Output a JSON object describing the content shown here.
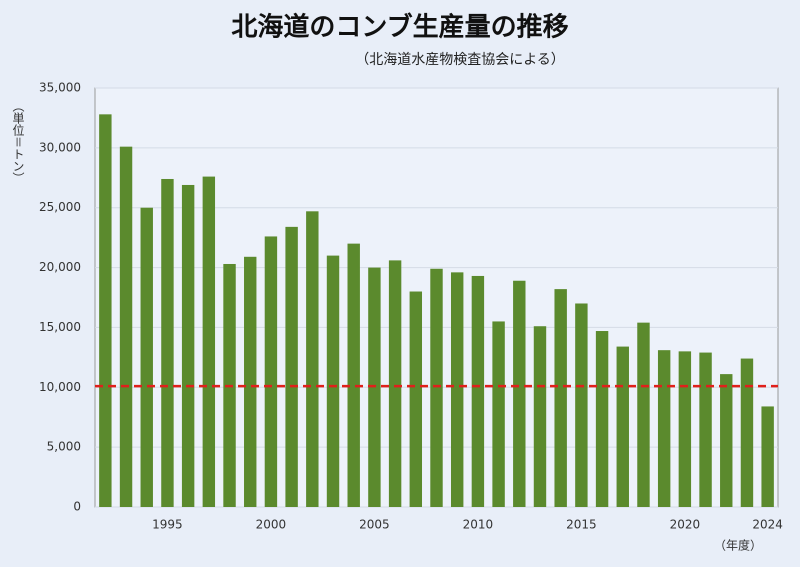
{
  "chart_data": {
    "type": "bar",
    "title": "北海道のコンブ生産量の推移",
    "subtitle": "（北海道水産物検査協会による）",
    "y_label": "（単位＝トン）",
    "x_label": "（年度）",
    "categories": [
      null,
      null,
      null,
      "1995",
      null,
      null,
      null,
      null,
      "2000",
      null,
      null,
      null,
      null,
      "2005",
      null,
      null,
      null,
      null,
      "2010",
      null,
      null,
      null,
      null,
      "2015",
      null,
      null,
      null,
      null,
      "2020",
      null,
      null,
      null,
      "2024"
    ],
    "values": [
      32800,
      30100,
      25000,
      27400,
      26900,
      27600,
      20300,
      20900,
      22600,
      23400,
      24700,
      21000,
      22000,
      20000,
      20600,
      18000,
      19900,
      19600,
      19300,
      15500,
      18900,
      15100,
      18200,
      17000,
      14700,
      13400,
      15400,
      13100,
      13000,
      12900,
      11100,
      12400,
      8400
    ],
    "color": "#5b8a2d",
    "ylim": [
      0,
      35000
    ],
    "yticks": [
      0,
      {
        "value": 5000,
        "label": "5,000"
      },
      {
        "value": 10000,
        "label": "10,000"
      },
      {
        "value": 15000,
        "label": "15,000"
      },
      {
        "value": 20000,
        "label": "20,000"
      },
      {
        "value": 25000,
        "label": "25,000"
      },
      {
        "value": 30000,
        "label": "30,000"
      },
      {
        "value": 35000,
        "label": "35,000"
      }
    ],
    "grid": true,
    "reference_line": {
      "value": 10100,
      "color": "#e0201b"
    }
  }
}
